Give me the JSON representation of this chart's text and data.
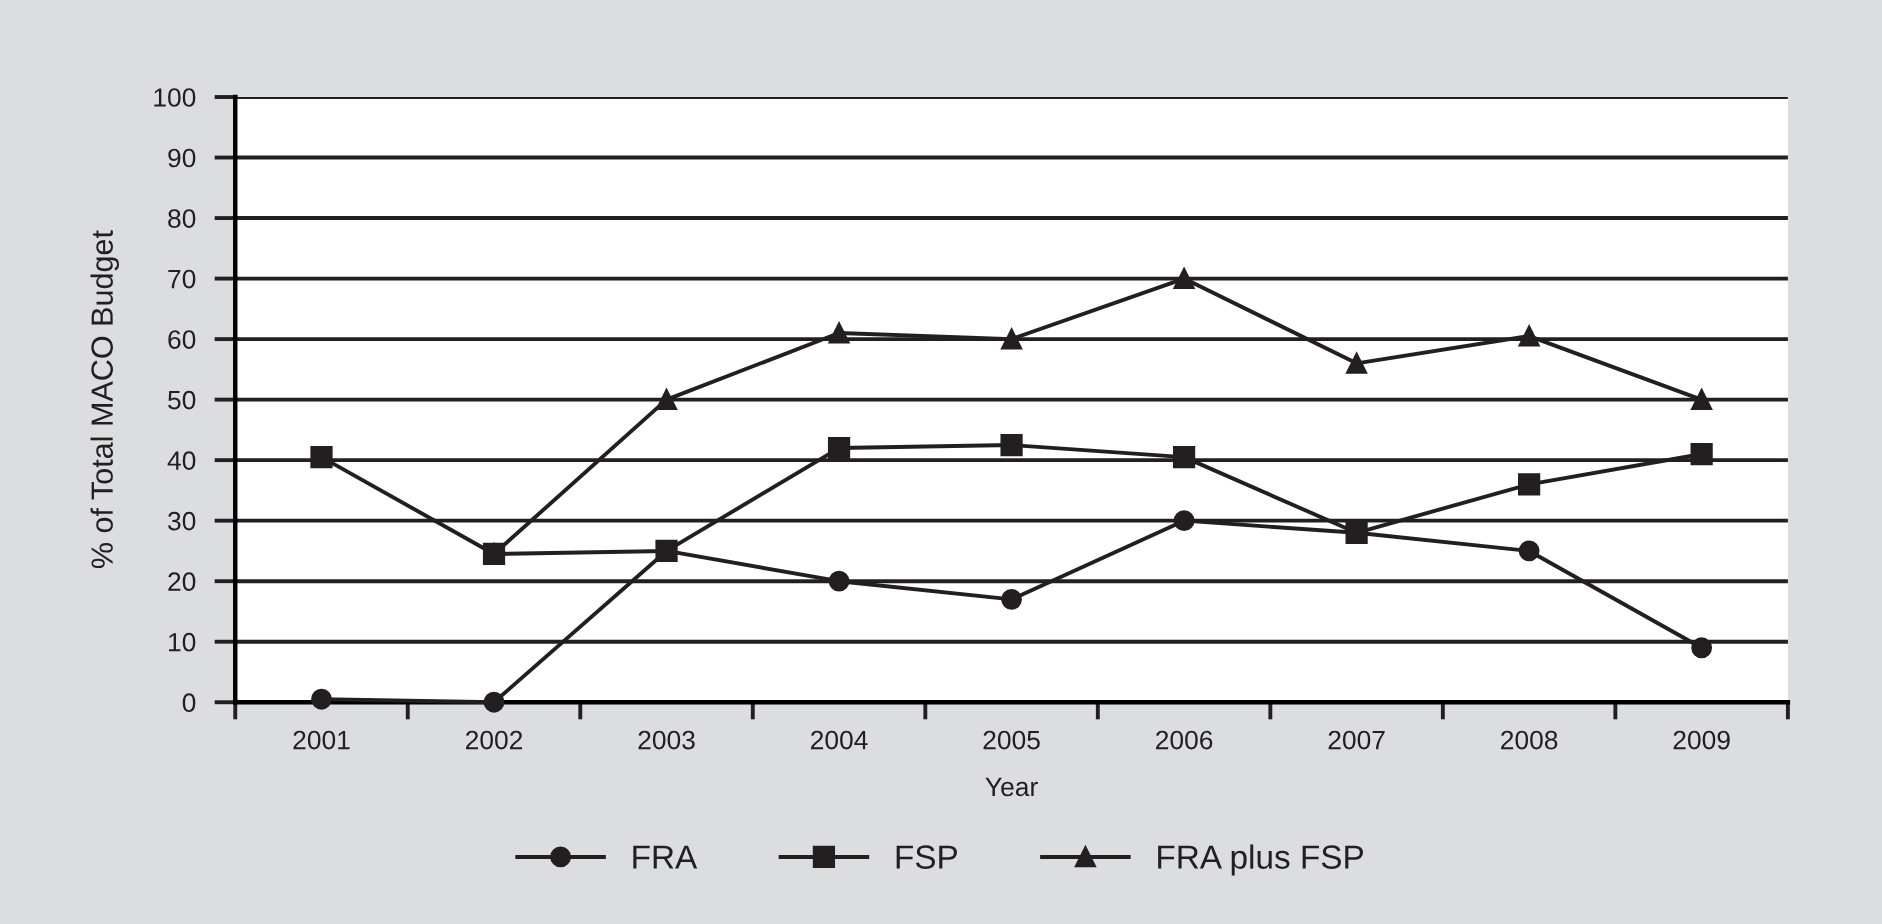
{
  "chart_data": {
    "type": "line",
    "xlabel": "Year",
    "ylabel": "% of Total MACO Budget",
    "categories": [
      "2001",
      "2002",
      "2003",
      "2004",
      "2005",
      "2006",
      "2007",
      "2008",
      "2009"
    ],
    "ylim": [
      0,
      100
    ],
    "yticks": [
      0,
      10,
      20,
      30,
      40,
      50,
      60,
      70,
      80,
      90,
      100
    ],
    "grid": "y",
    "legend": "bottom",
    "line_style": "solid",
    "series": [
      {
        "name": "FRA",
        "color": "#231f20",
        "marker": "circle",
        "values": [
          0.5,
          0,
          25,
          20,
          17,
          30,
          28,
          25,
          9
        ]
      },
      {
        "name": "FSP",
        "color": "#231f20",
        "marker": "square",
        "values": [
          40.5,
          24.5,
          25,
          42,
          42.5,
          40.5,
          28,
          36,
          41
        ]
      },
      {
        "name": "FRA plus FSP",
        "color": "#231f20",
        "marker": "triangle",
        "values": [
          null,
          24.5,
          50,
          61,
          60,
          70,
          56,
          60.5,
          50
        ]
      }
    ]
  }
}
